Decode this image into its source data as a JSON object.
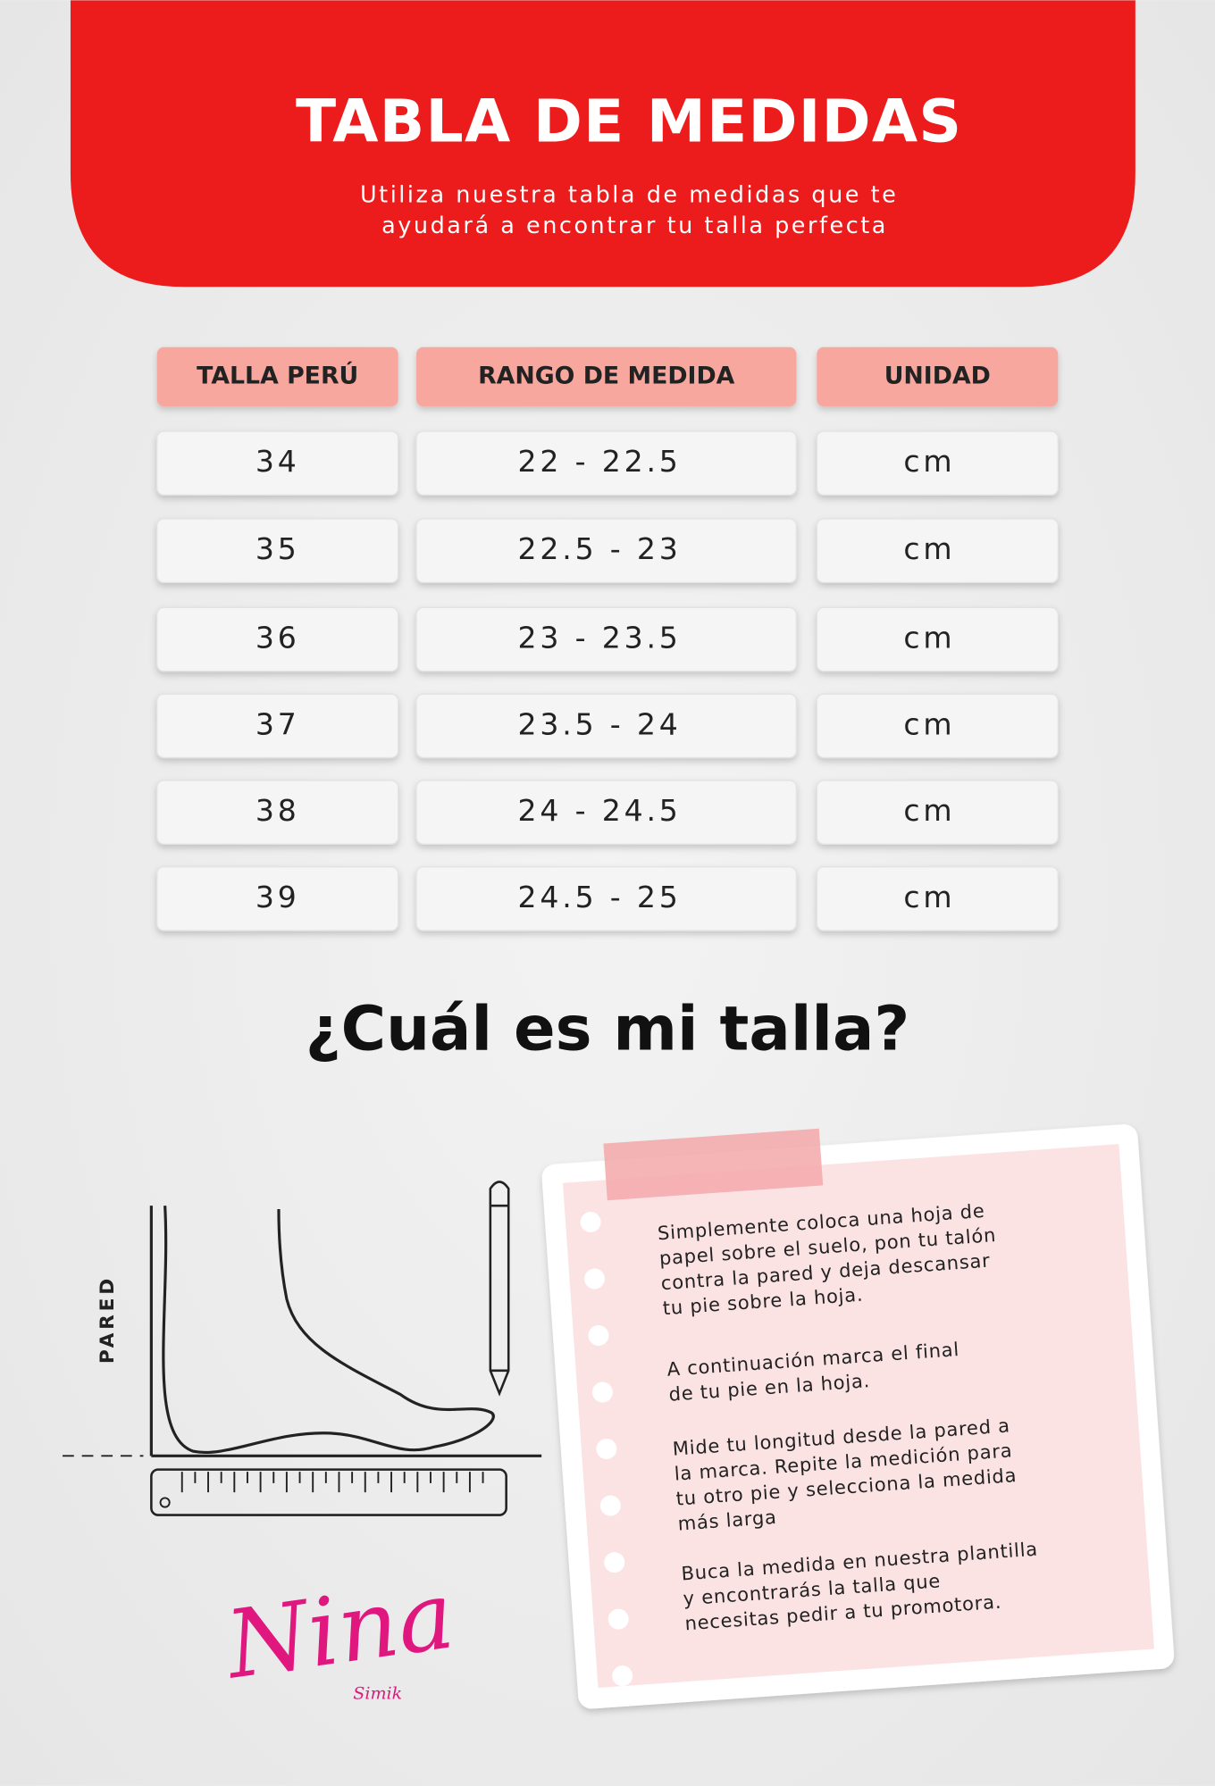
{
  "header": {
    "title": "TABLA DE MEDIDAS",
    "subtitle_lines": [
      "Utiliza nuestra tabla de medidas que te",
      "ayudará a encontrar tu talla perfecta"
    ]
  },
  "table": {
    "headers": [
      "TALLA PERÚ",
      "RANGO DE MEDIDA",
      "UNIDAD"
    ],
    "rows": [
      [
        34,
        "22 - 22.5",
        "cm"
      ],
      [
        35,
        "22.5 - 23",
        "cm"
      ],
      [
        36,
        "23 - 23.5",
        "cm"
      ],
      [
        37,
        "23.5 - 24",
        "cm"
      ],
      [
        38,
        "24 - 24.5",
        "cm"
      ],
      [
        39,
        "24.5 - 25",
        "cm"
      ]
    ]
  },
  "question": "¿Cuál es mi talla?",
  "diagram": {
    "wall_label": "PARED"
  },
  "note": {
    "paragraphs": [
      [
        "Simplemente coloca una hoja de",
        "papel sobre el suelo, pon tu talón",
        "contra la pared y deja descansar",
        "tu pie sobre la hoja."
      ],
      [
        "A continuación marca el final",
        "de tu pie en la hoja."
      ],
      [
        "Mide tu longitud desde la pared a",
        "la marca. Repite la medición para",
        "tu otro pie y selecciona la medida",
        "más larga"
      ],
      [
        "Buca la medida en nuestra plantilla",
        "y encontrarás la talla que",
        "necesitas pedir a tu promotora."
      ]
    ]
  },
  "logo": {
    "name": "Nina",
    "sub": "Simik"
  }
}
